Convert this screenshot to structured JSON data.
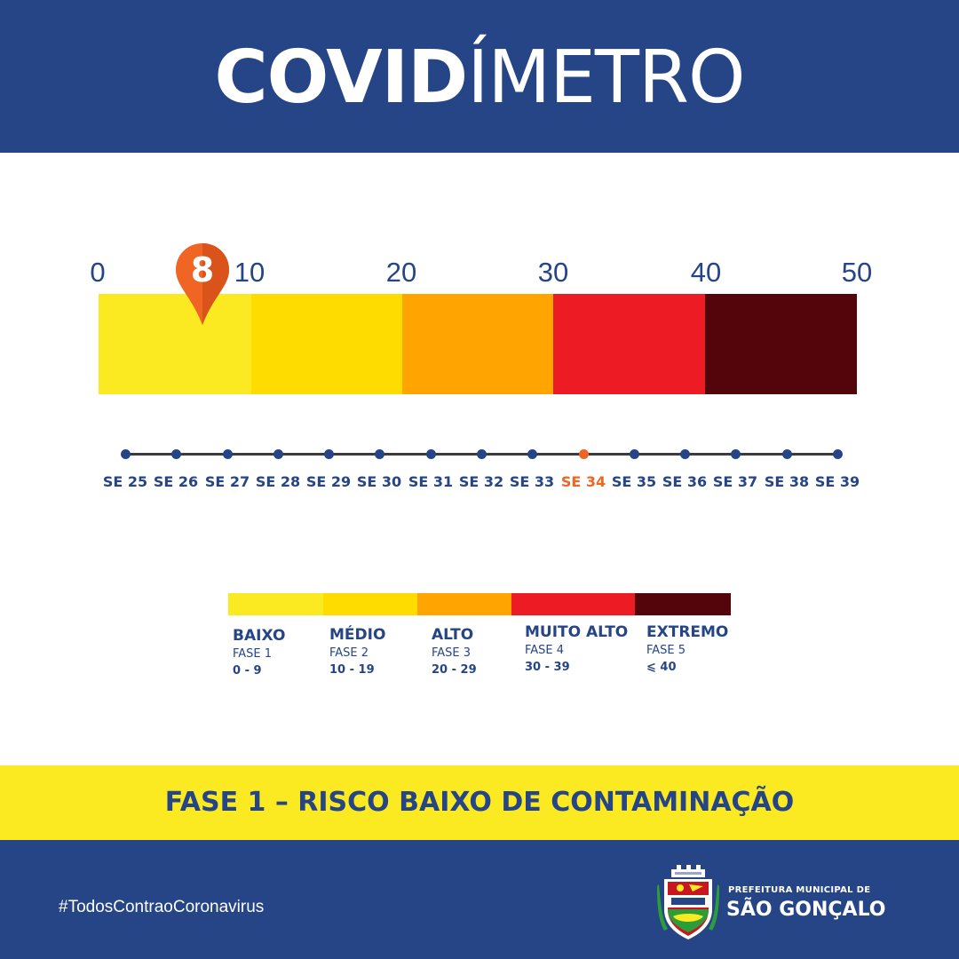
{
  "header": {
    "title_bold": "COVID",
    "title_regular": "ÍMETRO"
  },
  "gauge": {
    "value": "8",
    "scale_labels": [
      "0",
      "10",
      "20",
      "30",
      "40",
      "50"
    ],
    "segment_colors": [
      "#fbea21",
      "#fedc00",
      "#ffa400",
      "#ed1c24",
      "#54040b"
    ]
  },
  "timeline": {
    "weeks": [
      "SE 25",
      "SE 26",
      "SE 27",
      "SE 28",
      "SE 29",
      "SE 30",
      "SE 31",
      "SE 32",
      "SE 33",
      "SE 34",
      "SE 35",
      "SE 36",
      "SE 37",
      "SE 38",
      "SE 39"
    ],
    "current": "SE 34",
    "dot_color": "#264587",
    "current_color": "#f06424"
  },
  "legend": [
    {
      "name": "BAIXO",
      "phase": "FASE 1",
      "range": "0 - 9",
      "color": "#fbea21"
    },
    {
      "name": "MÉDIO",
      "phase": "FASE 2",
      "range": "10 - 19",
      "color": "#fedc00"
    },
    {
      "name": "ALTO",
      "phase": "FASE 3",
      "range": "20 - 29",
      "color": "#ffa400"
    },
    {
      "name": "MUITO ALTO",
      "phase": "FASE 4",
      "range": "30 - 39",
      "color": "#ed1c24"
    },
    {
      "name": "EXTREMO",
      "phase": "FASE 5",
      "range": "⩽ 40",
      "color": "#54040b"
    }
  ],
  "banner": {
    "text": "FASE 1 – RISCO BAIXO DE CONTAMINAÇÃO",
    "color": "#fbea21"
  },
  "footer": {
    "hashtag": "#TodosContraoCoronavirus",
    "org_line1": "PREFEITURA MUNICIPAL DE",
    "org_line2": "SÃO GONÇALO"
  },
  "colors": {
    "brand_blue": "#264587",
    "pin_orange": "#f06424"
  }
}
